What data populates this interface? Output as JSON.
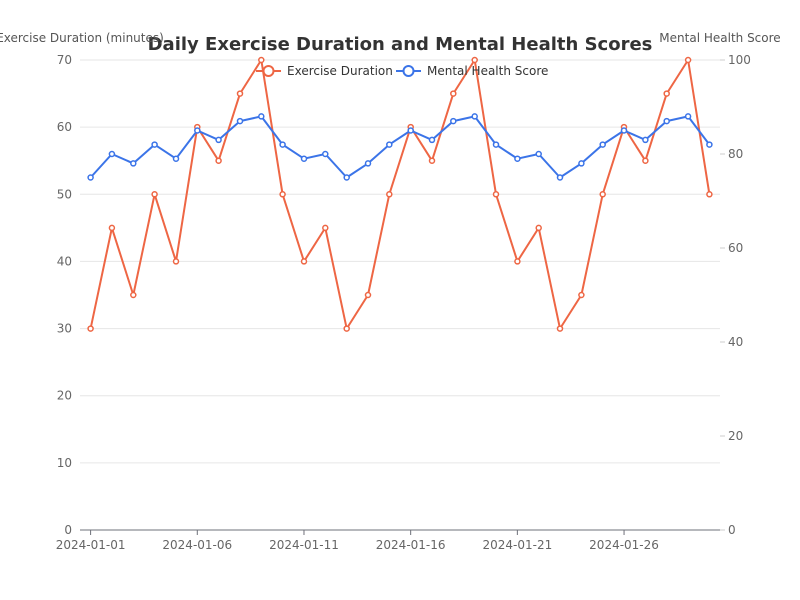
{
  "chart_data": {
    "type": "line",
    "title": "Daily Exercise Duration and Mental Health Scores",
    "x": [
      "2024-01-01",
      "2024-01-02",
      "2024-01-03",
      "2024-01-04",
      "2024-01-05",
      "2024-01-06",
      "2024-01-07",
      "2024-01-08",
      "2024-01-09",
      "2024-01-10",
      "2024-01-11",
      "2024-01-12",
      "2024-01-13",
      "2024-01-14",
      "2024-01-15",
      "2024-01-16",
      "2024-01-17",
      "2024-01-18",
      "2024-01-19",
      "2024-01-20",
      "2024-01-21",
      "2024-01-22",
      "2024-01-23",
      "2024-01-24",
      "2024-01-25",
      "2024-01-26",
      "2024-01-27",
      "2024-01-28",
      "2024-01-29",
      "2024-01-30"
    ],
    "x_tick_labels": [
      "2024-01-01",
      "2024-01-06",
      "2024-01-11",
      "2024-01-16",
      "2024-01-21",
      "2024-01-26"
    ],
    "series": [
      {
        "name": "Exercise Duration",
        "axis": "left",
        "color": "#ee6644",
        "values": [
          30,
          45,
          35,
          50,
          40,
          60,
          55,
          65,
          70,
          50,
          40,
          45,
          30,
          35,
          50,
          60,
          55,
          65,
          70,
          50,
          40,
          45,
          30,
          35,
          50,
          60,
          55,
          65,
          70,
          50
        ]
      },
      {
        "name": "Mental Health Score",
        "axis": "right",
        "color": "#3b74e8",
        "values": [
          75,
          80,
          78,
          82,
          79,
          85,
          83,
          87,
          88,
          82,
          79,
          80,
          75,
          78,
          82,
          85,
          83,
          87,
          88,
          82,
          79,
          80,
          75,
          78,
          82,
          85,
          83,
          87,
          88,
          82
        ]
      }
    ],
    "ylabel_left": "Exercise Duration (minutes)",
    "ylim_left": [
      0,
      70
    ],
    "yticks_left": [
      0,
      10,
      20,
      30,
      40,
      50,
      60,
      70
    ],
    "ylabel_right": "Mental Health Score",
    "ylim_right": [
      0,
      100
    ],
    "yticks_right": [
      0,
      20,
      40,
      60,
      80,
      100
    ],
    "grid": true,
    "legend_position": "top-center"
  }
}
